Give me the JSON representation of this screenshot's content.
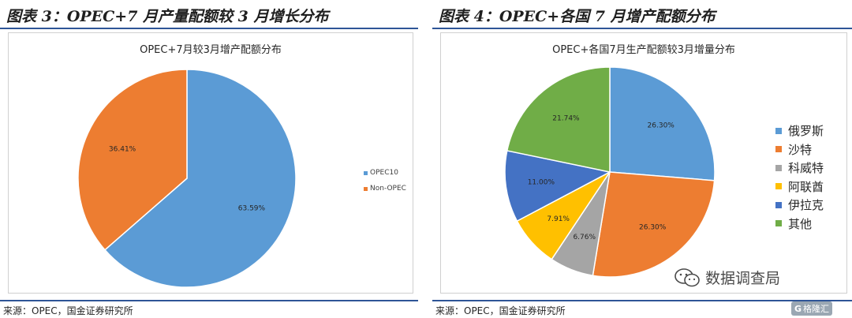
{
  "figures": [
    {
      "fig_title": "图表 3：OPEC+7 月产量配额较 3 月增长分布",
      "source": "来源：OPEC，国金证券研究所"
    },
    {
      "fig_title": "图表 4：OPEC+各国 7 月增产配额分布",
      "source": "来源：OPEC，国金证券研究所"
    }
  ],
  "watermark": {
    "text": "数据调查局",
    "icon": "wechat-icon"
  },
  "badge": {
    "text": "格隆汇",
    "icon": "G"
  },
  "chart_data": [
    {
      "type": "pie",
      "title": "OPEC+7月较3月增产配额分布",
      "labels": [
        "OPEC10",
        "Non-OPEC"
      ],
      "values": [
        63.59,
        36.41
      ],
      "value_labels": [
        "63.59%",
        "36.41%"
      ],
      "colors": [
        "#5b9bd5",
        "#ed7d31"
      ],
      "start": "12 o'clock, clockwise",
      "legend": "right"
    },
    {
      "type": "pie",
      "title": "OPEC+各国7月生产配额较3月增量分布",
      "labels": [
        "俄罗斯",
        "沙特",
        "科威特",
        "阿联酋",
        "伊拉克",
        "其他"
      ],
      "values": [
        26.3,
        26.3,
        6.76,
        7.91,
        11.0,
        21.74
      ],
      "value_labels": [
        "26.30%",
        "26.30%",
        "6.76%",
        "7.91%",
        "11.00%",
        "21.74%"
      ],
      "colors": [
        "#5b9bd5",
        "#ed7d31",
        "#a5a5a5",
        "#ffc000",
        "#4472c4",
        "#70ad47"
      ],
      "start": "12 o'clock, clockwise",
      "legend": "right"
    }
  ]
}
